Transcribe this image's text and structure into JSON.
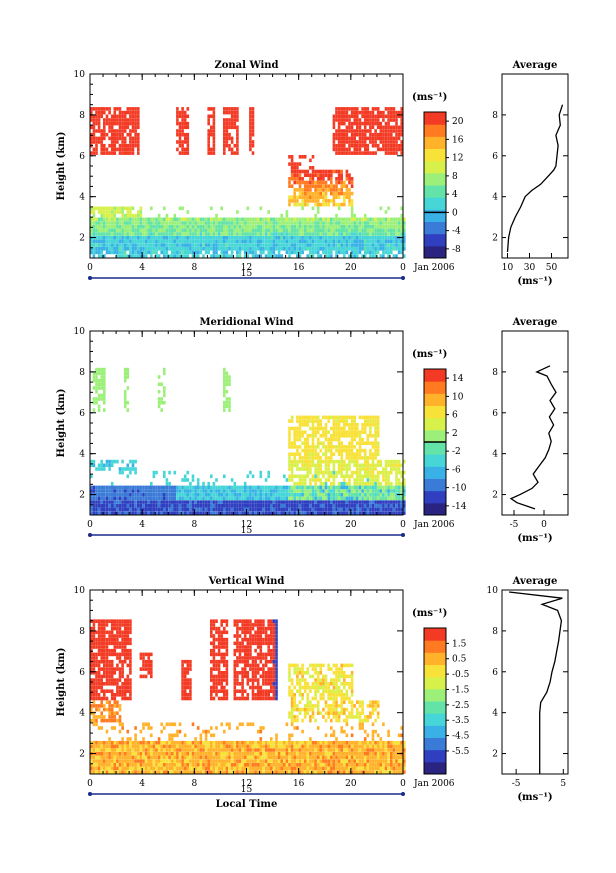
{
  "colors": {
    "scale": [
      "#2a2480",
      "#2f3fc0",
      "#3a7bd8",
      "#39b0e6",
      "#47d6d8",
      "#63e3a8",
      "#9cf07a",
      "#d8f04a",
      "#f8e23a",
      "#ffb22a",
      "#ff7a20",
      "#f33a24"
    ]
  },
  "xaxis": {
    "ticks": [
      "0",
      "4",
      "8",
      "12",
      "16",
      "20",
      "0"
    ],
    "date_label": "15",
    "month_label": "Jan 2006",
    "title": "Local Time"
  },
  "chart_data": [
    {
      "type": "heatmap",
      "title": "Zonal Wind",
      "ylabel": "Height (km)",
      "ylim": [
        1,
        10
      ],
      "yticks": [
        "2",
        "4",
        "6",
        "8",
        "10"
      ],
      "colorbar": {
        "unit": "(ms⁻¹)",
        "range": [
          -10,
          22
        ],
        "ticks": [
          "20",
          "16",
          "12",
          "8",
          "4",
          "0",
          "-4",
          "-8"
        ],
        "marker_value": 0
      },
      "profile": {
        "title": "Average",
        "xlabel": "(ms⁻¹)",
        "xticks": [
          "10",
          "30",
          "50"
        ],
        "yticks": [
          "2",
          "4",
          "6",
          "8"
        ],
        "heights": [
          1.3,
          2.0,
          2.5,
          3.0,
          3.5,
          4.0,
          4.3,
          4.6,
          5.0,
          5.3,
          5.5,
          6.0,
          6.5,
          7.0,
          7.5,
          8.0,
          8.5
        ],
        "values": [
          10,
          11,
          13,
          17,
          22,
          26,
          32,
          40,
          47,
          52,
          54,
          55,
          56,
          54,
          58,
          57,
          60
        ]
      }
    },
    {
      "type": "heatmap",
      "title": "Meridional Wind",
      "ylabel": "Height (km)",
      "ylim": [
        1,
        10
      ],
      "yticks": [
        "2",
        "4",
        "6",
        "8",
        "10"
      ],
      "colorbar": {
        "unit": "(ms⁻¹)",
        "range": [
          -16,
          16
        ],
        "ticks": [
          "14",
          "10",
          "6",
          "2",
          "-2",
          "-6",
          "-10",
          "-14"
        ],
        "marker_value": 0
      },
      "profile": {
        "title": "Average",
        "xlabel": "(ms⁻¹)",
        "xticks": [
          "-5",
          "0"
        ],
        "yticks": [
          "2",
          "4",
          "6",
          "8"
        ],
        "heights": [
          1.3,
          1.6,
          1.8,
          2.0,
          2.3,
          2.6,
          3.0,
          3.4,
          3.8,
          4.2,
          4.6,
          5.0,
          5.4,
          5.8,
          6.2,
          6.6,
          7.0,
          7.4,
          7.8,
          8.0,
          8.3
        ],
        "values": [
          -1.5,
          -4.5,
          -5.5,
          -4.0,
          -2.0,
          -1.0,
          -1.8,
          -0.8,
          0.2,
          0.8,
          1.2,
          0.8,
          1.6,
          0.9,
          1.8,
          1.0,
          2.0,
          1.2,
          0.5,
          -1.2,
          1.0
        ]
      }
    },
    {
      "type": "heatmap",
      "title": "Vertical Wind",
      "ylabel": "Height (km)",
      "ylim": [
        1,
        10
      ],
      "yticks": [
        "2",
        "4",
        "6",
        "8",
        "10"
      ],
      "colorbar": {
        "unit": "(ms⁻¹)",
        "range": [
          -7,
          2.5
        ],
        "ticks": [
          "1.5",
          "0.5",
          "-0.5",
          "-1.5",
          "-2.5",
          "-3.5",
          "-4.5",
          "-5.5"
        ],
        "marker_value": null
      },
      "profile": {
        "title": "Average",
        "xlabel": "(ms⁻¹)",
        "xticks": [
          "-5",
          "5"
        ],
        "yticks": [
          "2",
          "4",
          "6",
          "8",
          "10"
        ],
        "heights": [
          1.0,
          2.0,
          3.0,
          4.0,
          4.5,
          5.0,
          5.5,
          6.0,
          6.5,
          7.0,
          7.5,
          8.0,
          8.5,
          9.0,
          9.3,
          9.6,
          9.9
        ],
        "values": [
          0,
          0,
          0,
          0,
          0.2,
          1.5,
          2.2,
          2.6,
          3.2,
          3.6,
          4.0,
          4.3,
          4.6,
          3.8,
          0.5,
          4.8,
          -6.5
        ]
      }
    }
  ]
}
